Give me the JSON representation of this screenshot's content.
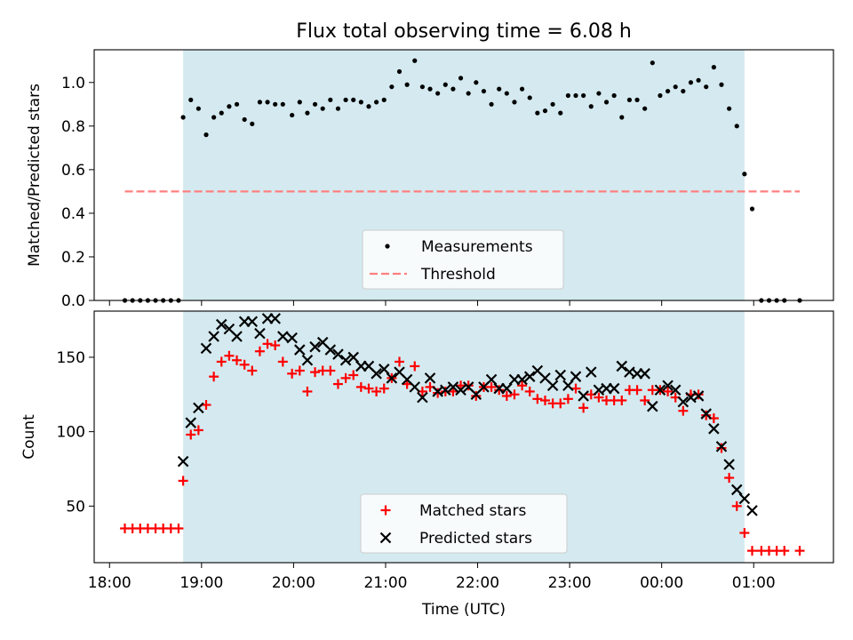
{
  "figure": {
    "title": "Flux total observing time = 6.08 h"
  },
  "colors": {
    "shade": "#d4eaf0",
    "threshold": "#ff7f7f",
    "measurement": "#000000",
    "matched": "#ff0000",
    "predicted": "#000000"
  },
  "chart_data": [
    {
      "type": "scatter",
      "title": "Flux total observing time = 6.08 h",
      "xlabel": "",
      "ylabel": "Matched/Predicted stars",
      "ylim": [
        0,
        1.15
      ],
      "xlim": [
        "17:50",
        "01:52"
      ],
      "yticks": [
        0.0,
        0.2,
        0.4,
        0.6,
        0.8,
        1.0
      ],
      "ytick_labels": [
        "0.0",
        "0.2",
        "0.4",
        "0.6",
        "0.8",
        "1.0"
      ],
      "shaded_span": [
        "18:48",
        "00:54"
      ],
      "legend": {
        "placement": "lower center",
        "entries": [
          "Measurements",
          "Threshold"
        ]
      },
      "threshold": {
        "name": "Threshold",
        "value": 0.5,
        "x_range": [
          "18:10",
          "01:30"
        ]
      },
      "series": [
        {
          "name": "Measurements",
          "marker": "dot",
          "points": [
            [
              "18:10",
              0
            ],
            [
              "18:15",
              0
            ],
            [
              "18:20",
              0
            ],
            [
              "18:25",
              0
            ],
            [
              "18:30",
              0
            ],
            [
              "18:35",
              0
            ],
            [
              "18:40",
              0
            ],
            [
              "18:45",
              0
            ],
            [
              "18:48",
              0.84
            ],
            [
              "18:53",
              0.92
            ],
            [
              "18:58",
              0.88
            ],
            [
              "19:03",
              0.76
            ],
            [
              "19:08",
              0.84
            ],
            [
              "19:13",
              0.86
            ],
            [
              "19:18",
              0.89
            ],
            [
              "19:23",
              0.9
            ],
            [
              "19:28",
              0.83
            ],
            [
              "19:33",
              0.81
            ],
            [
              "19:38",
              0.91
            ],
            [
              "19:43",
              0.91
            ],
            [
              "19:48",
              0.9
            ],
            [
              "19:53",
              0.9
            ],
            [
              "19:59",
              0.85
            ],
            [
              "20:04",
              0.91
            ],
            [
              "20:09",
              0.86
            ],
            [
              "20:14",
              0.9
            ],
            [
              "20:19",
              0.88
            ],
            [
              "20:24",
              0.92
            ],
            [
              "20:29",
              0.88
            ],
            [
              "20:34",
              0.92
            ],
            [
              "20:39",
              0.92
            ],
            [
              "20:44",
              0.91
            ],
            [
              "20:49",
              0.89
            ],
            [
              "20:54",
              0.91
            ],
            [
              "20:59",
              0.92
            ],
            [
              "21:04",
              0.98
            ],
            [
              "21:09",
              1.05
            ],
            [
              "21:14",
              0.99
            ],
            [
              "21:19",
              1.1
            ],
            [
              "21:24",
              0.98
            ],
            [
              "21:29",
              0.97
            ],
            [
              "21:34",
              0.95
            ],
            [
              "21:39",
              0.99
            ],
            [
              "21:44",
              0.97
            ],
            [
              "21:49",
              1.02
            ],
            [
              "21:54",
              0.95
            ],
            [
              "21:59",
              1.0
            ],
            [
              "22:04",
              0.96
            ],
            [
              "22:09",
              0.9
            ],
            [
              "22:14",
              0.97
            ],
            [
              "22:19",
              0.95
            ],
            [
              "22:24",
              0.91
            ],
            [
              "22:29",
              0.97
            ],
            [
              "22:34",
              0.93
            ],
            [
              "22:39",
              0.86
            ],
            [
              "22:44",
              0.87
            ],
            [
              "22:49",
              0.9
            ],
            [
              "22:54",
              0.86
            ],
            [
              "22:59",
              0.94
            ],
            [
              "23:04",
              0.94
            ],
            [
              "23:09",
              0.94
            ],
            [
              "23:14",
              0.89
            ],
            [
              "23:19",
              0.95
            ],
            [
              "23:24",
              0.91
            ],
            [
              "23:29",
              0.94
            ],
            [
              "23:34",
              0.84
            ],
            [
              "23:39",
              0.92
            ],
            [
              "23:44",
              0.92
            ],
            [
              "23:49",
              0.88
            ],
            [
              "23:54",
              1.09
            ],
            [
              "23:59",
              0.94
            ],
            [
              "00:04",
              0.96
            ],
            [
              "00:09",
              0.98
            ],
            [
              "00:14",
              0.96
            ],
            [
              "00:19",
              1.0
            ],
            [
              "00:24",
              1.01
            ],
            [
              "00:29",
              0.98
            ],
            [
              "00:34",
              1.07
            ],
            [
              "00:39",
              0.99
            ],
            [
              "00:44",
              0.88
            ],
            [
              "00:49",
              0.8
            ],
            [
              "00:54",
              0.58
            ],
            [
              "00:59",
              0.42
            ],
            [
              "01:05",
              0
            ],
            [
              "01:10",
              0
            ],
            [
              "01:15",
              0
            ],
            [
              "01:20",
              0
            ],
            [
              "01:30",
              0
            ]
          ]
        }
      ]
    },
    {
      "type": "scatter",
      "xlabel": "Time (UTC)",
      "ylabel": "Count",
      "ylim": [
        12,
        181
      ],
      "xlim": [
        "17:50",
        "01:52"
      ],
      "yticks": [
        50,
        100,
        150
      ],
      "ytick_labels": [
        "50",
        "100",
        "150"
      ],
      "xticks": [
        "18:00",
        "19:00",
        "20:00",
        "21:00",
        "22:00",
        "23:00",
        "00:00",
        "01:00"
      ],
      "xtick_labels": [
        "18:00",
        "19:00",
        "20:00",
        "21:00",
        "22:00",
        "23:00",
        "00:00",
        "01:00"
      ],
      "shaded_span": [
        "18:48",
        "00:54"
      ],
      "legend": {
        "placement": "lower center",
        "entries": [
          "Matched stars",
          "Predicted stars"
        ]
      },
      "series": [
        {
          "name": "Matched stars",
          "marker": "plus",
          "points": [
            [
              "18:10",
              35
            ],
            [
              "18:15",
              35
            ],
            [
              "18:20",
              35
            ],
            [
              "18:25",
              35
            ],
            [
              "18:30",
              35
            ],
            [
              "18:35",
              35
            ],
            [
              "18:40",
              35
            ],
            [
              "18:45",
              35
            ],
            [
              "18:48",
              67
            ],
            [
              "18:53",
              98
            ],
            [
              "18:58",
              101
            ],
            [
              "19:03",
              118
            ],
            [
              "19:08",
              137
            ],
            [
              "19:13",
              147
            ],
            [
              "19:18",
              151
            ],
            [
              "19:23",
              148
            ],
            [
              "19:28",
              145
            ],
            [
              "19:33",
              141
            ],
            [
              "19:38",
              154
            ],
            [
              "19:43",
              159
            ],
            [
              "19:48",
              158
            ],
            [
              "19:53",
              147
            ],
            [
              "19:59",
              139
            ],
            [
              "20:04",
              141
            ],
            [
              "20:09",
              127
            ],
            [
              "20:14",
              140
            ],
            [
              "20:19",
              141
            ],
            [
              "20:24",
              141
            ],
            [
              "20:29",
              132
            ],
            [
              "20:34",
              136
            ],
            [
              "20:39",
              138
            ],
            [
              "20:44",
              130
            ],
            [
              "20:49",
              129
            ],
            [
              "20:54",
              127
            ],
            [
              "20:59",
              129
            ],
            [
              "21:04",
              136
            ],
            [
              "21:09",
              147
            ],
            [
              "21:14",
              132
            ],
            [
              "21:19",
              144
            ],
            [
              "21:24",
              127
            ],
            [
              "21:29",
              130
            ],
            [
              "21:34",
              126
            ],
            [
              "21:39",
              127
            ],
            [
              "21:44",
              127
            ],
            [
              "21:49",
              131
            ],
            [
              "21:54",
              131
            ],
            [
              "21:59",
              124
            ],
            [
              "22:04",
              130
            ],
            [
              "22:09",
              130
            ],
            [
              "22:14",
              128
            ],
            [
              "22:19",
              124
            ],
            [
              "22:24",
              125
            ],
            [
              "22:29",
              131
            ],
            [
              "22:34",
              127
            ],
            [
              "22:39",
              122
            ],
            [
              "22:44",
              121
            ],
            [
              "22:49",
              119
            ],
            [
              "22:54",
              119
            ],
            [
              "22:59",
              122
            ],
            [
              "23:04",
              129
            ],
            [
              "23:09",
              116
            ],
            [
              "23:14",
              125
            ],
            [
              "23:19",
              123
            ],
            [
              "23:24",
              121
            ],
            [
              "23:29",
              121
            ],
            [
              "23:34",
              121
            ],
            [
              "23:39",
              128
            ],
            [
              "23:44",
              128
            ],
            [
              "23:49",
              121
            ],
            [
              "23:54",
              128
            ],
            [
              "23:59",
              128
            ],
            [
              "00:04",
              127
            ],
            [
              "00:09",
              123
            ],
            [
              "00:14",
              114
            ],
            [
              "00:19",
              125
            ],
            [
              "00:24",
              125
            ],
            [
              "00:29",
              111
            ],
            [
              "00:34",
              109
            ],
            [
              "00:39",
              89
            ],
            [
              "00:44",
              69
            ],
            [
              "00:49",
              50
            ],
            [
              "00:54",
              32
            ],
            [
              "00:59",
              20
            ],
            [
              "01:05",
              20
            ],
            [
              "01:10",
              20
            ],
            [
              "01:15",
              20
            ],
            [
              "01:20",
              20
            ],
            [
              "01:30",
              20
            ]
          ]
        },
        {
          "name": "Predicted stars",
          "marker": "cross",
          "points": [
            [
              "18:48",
              80
            ],
            [
              "18:53",
              106
            ],
            [
              "18:58",
              116
            ],
            [
              "19:03",
              156
            ],
            [
              "19:08",
              164
            ],
            [
              "19:13",
              172
            ],
            [
              "19:18",
              169
            ],
            [
              "19:23",
              164
            ],
            [
              "19:28",
              174
            ],
            [
              "19:33",
              174
            ],
            [
              "19:38",
              166
            ],
            [
              "19:43",
              176
            ],
            [
              "19:48",
              176
            ],
            [
              "19:53",
              164
            ],
            [
              "19:59",
              163
            ],
            [
              "20:04",
              155
            ],
            [
              "20:09",
              148
            ],
            [
              "20:14",
              157
            ],
            [
              "20:19",
              160
            ],
            [
              "20:24",
              155
            ],
            [
              "20:29",
              152
            ],
            [
              "20:34",
              148
            ],
            [
              "20:39",
              150
            ],
            [
              "20:44",
              144
            ],
            [
              "20:49",
              144
            ],
            [
              "20:54",
              139
            ],
            [
              "20:59",
              142
            ],
            [
              "21:04",
              136
            ],
            [
              "21:09",
              140
            ],
            [
              "21:14",
              135
            ],
            [
              "21:19",
              130
            ],
            [
              "21:24",
              123
            ],
            [
              "21:29",
              136
            ],
            [
              "21:34",
              127
            ],
            [
              "21:39",
              128
            ],
            [
              "21:44",
              130
            ],
            [
              "21:49",
              128
            ],
            [
              "21:54",
              130
            ],
            [
              "21:59",
              125
            ],
            [
              "22:04",
              130
            ],
            [
              "22:09",
              135
            ],
            [
              "22:14",
              129
            ],
            [
              "22:19",
              129
            ],
            [
              "22:24",
              135
            ],
            [
              "22:29",
              135
            ],
            [
              "22:34",
              137
            ],
            [
              "22:39",
              141
            ],
            [
              "22:44",
              136
            ],
            [
              "22:49",
              131
            ],
            [
              "22:54",
              138
            ],
            [
              "22:59",
              131
            ],
            [
              "23:04",
              137
            ],
            [
              "23:09",
              124
            ],
            [
              "23:14",
              140
            ],
            [
              "23:19",
              128
            ],
            [
              "23:24",
              129
            ],
            [
              "23:29",
              129
            ],
            [
              "23:34",
              144
            ],
            [
              "23:39",
              140
            ],
            [
              "23:44",
              139
            ],
            [
              "23:49",
              139
            ],
            [
              "23:54",
              117
            ],
            [
              "23:59",
              128
            ],
            [
              "00:04",
              131
            ],
            [
              "00:09",
              128
            ],
            [
              "00:14",
              120
            ],
            [
              "00:19",
              123
            ],
            [
              "00:24",
              124
            ],
            [
              "00:29",
              112
            ],
            [
              "00:34",
              102
            ],
            [
              "00:39",
              90
            ],
            [
              "00:44",
              78
            ],
            [
              "00:49",
              61
            ],
            [
              "00:54",
              55
            ],
            [
              "00:59",
              47
            ]
          ]
        }
      ]
    }
  ]
}
